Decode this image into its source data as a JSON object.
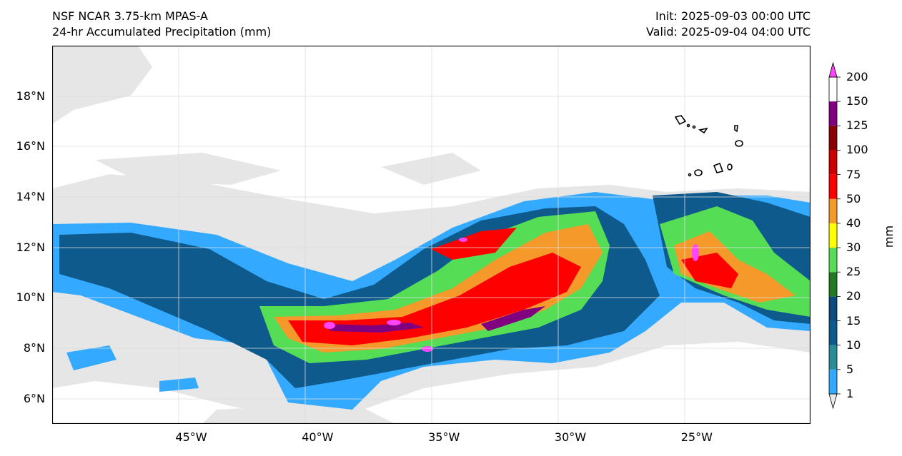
{
  "header": {
    "model": "NSF NCAR 3.75-km MPAS-A",
    "field": "24-hr Accumulated Precipitation (mm)",
    "init": "Init: 2025-09-03 00:00 UTC",
    "valid": "Valid: 2025-09-04 04:00 UTC"
  },
  "map": {
    "lon_range": [
      -50.5,
      -20.5
    ],
    "lat_range": [
      5.0,
      20.0
    ],
    "lon_ticks": [
      {
        "value": -45,
        "label": "45°W"
      },
      {
        "value": -40,
        "label": "40°W"
      },
      {
        "value": -35,
        "label": "35°W"
      },
      {
        "value": -30,
        "label": "30°W"
      },
      {
        "value": -25,
        "label": "25°W"
      }
    ],
    "lat_ticks": [
      {
        "value": 18,
        "label": "18°N"
      },
      {
        "value": 16,
        "label": "16°N"
      },
      {
        "value": 14,
        "label": "14°N"
      },
      {
        "value": 12,
        "label": "12°N"
      },
      {
        "value": 10,
        "label": "10°N"
      },
      {
        "value": 8,
        "label": "8°N"
      },
      {
        "value": 6,
        "label": "6°N"
      }
    ],
    "gridlines": true,
    "islands": "Cape Verde Islands (coastline outlines)"
  },
  "colorbar": {
    "label": "mm",
    "levels": [
      "1",
      "5",
      "10",
      "15",
      "20",
      "25",
      "30",
      "40",
      "50",
      "75",
      "100",
      "125",
      "150",
      "200"
    ],
    "colors": [
      "#e8e8e8",
      "#33aaff",
      "#2a8c99",
      "#0e5a8c",
      "#0b4a7a",
      "#217a21",
      "#55dd55",
      "#ffff00",
      "#f59a2a",
      "#ff0000",
      "#cc0000",
      "#8b0000",
      "#800080",
      "#ff44ff"
    ],
    "extend": "both"
  }
}
